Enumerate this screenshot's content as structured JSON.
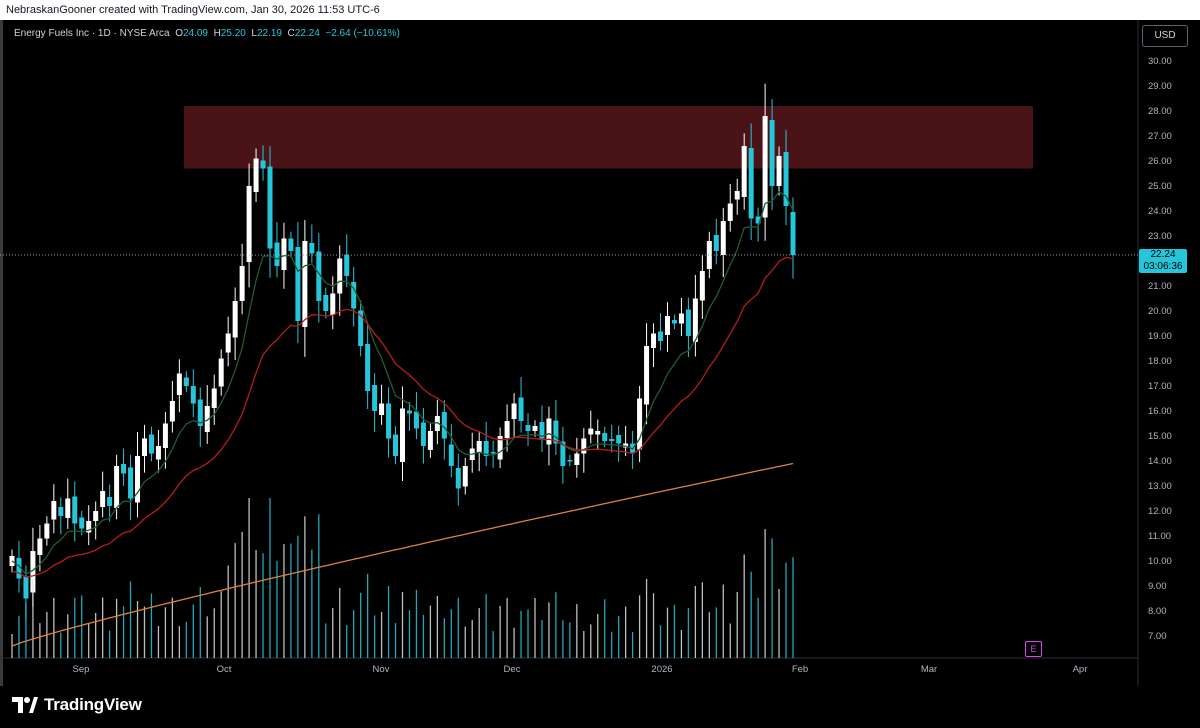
{
  "header": {
    "text": "NebraskanGooner created with TradingView.com, Jan 30, 2026 11:53 UTC-6"
  },
  "legend": {
    "symbol": "Energy Fuels Inc · 1D · NYSE Arca",
    "o_label": "O",
    "o": "24.09",
    "h_label": "H",
    "h": "25.20",
    "l_label": "L",
    "l": "22.19",
    "c_label": "C",
    "c": "22.24",
    "change": "−2.64 (−10.61%)"
  },
  "currency": "USD",
  "last_price": {
    "price": "22.24",
    "countdown": "03:06:36"
  },
  "earnings_badge": "E",
  "brand": "TradingView",
  "colors": {
    "up": "#ffffff",
    "down": "#26c6da",
    "zone": "#4a1318",
    "ema_short": "#1e5c32",
    "ema_mid": "#b71c1c",
    "ema_long": "#e0823d"
  },
  "chart_data": {
    "type": "candlestick",
    "title": "Energy Fuels Inc · 1D · NYSE Arca",
    "y_axis": {
      "ticks": [
        "30.00",
        "29.00",
        "28.00",
        "27.00",
        "26.00",
        "25.00",
        "24.00",
        "23.00",
        "22.00",
        "21.00",
        "20.00",
        "19.00",
        "18.00",
        "17.00",
        "16.00",
        "15.00",
        "14.00",
        "13.00",
        "12.00",
        "11.00",
        "10.00",
        "9.00",
        "8.00",
        "7.00"
      ],
      "ylim": [
        6.6,
        30.9
      ]
    },
    "x_axis": {
      "labels": [
        "Sep",
        "Oct",
        "Nov",
        "Dec",
        "2026",
        "Feb",
        "Mar",
        "Apr"
      ]
    },
    "resistance_zone": [
      25.7,
      28.2
    ],
    "candles_close": [
      10.2,
      9.3,
      8.5,
      10.4,
      10.9,
      11.5,
      12.4,
      11.8,
      12.5,
      11.5,
      11.3,
      11.6,
      12.0,
      12.8,
      12.2,
      13.8,
      13.5,
      12.5,
      14.2,
      14.9,
      14.3,
      14.6,
      15.5,
      16.4,
      17.5,
      17.0,
      16.3,
      15.4,
      16.2,
      16.9,
      18.1,
      19.1,
      20.4,
      21.8,
      25.0,
      26.1,
      25.7,
      22.5,
      21.8,
      22.9,
      22.4,
      19.6,
      22.8,
      22.3,
      20.4,
      20.0,
      20.7,
      22.1,
      21.4,
      20.1,
      18.6,
      16.8,
      16.0,
      16.3,
      14.9,
      14.2,
      16.1,
      15.9,
      15.3,
      14.6,
      15.2,
      15.8,
      14.9,
      13.8,
      12.9,
      13.8,
      14.5,
      14.8,
      14.2,
      14.3,
      15.0,
      15.6,
      16.3,
      15.6,
      15.2,
      15.4,
      14.9,
      15.7,
      14.7,
      13.8,
      14.0,
      14.3,
      14.9,
      15.3,
      15.2,
      14.8,
      14.8,
      14.7,
      14.7,
      14.3,
      16.5,
      18.6,
      19.1,
      18.8,
      19.8,
      19.5,
      19.9,
      19.0,
      20.5,
      21.6,
      22.8,
      22.4,
      23.6,
      24.3,
      24.8,
      26.6,
      23.7,
      23.5,
      27.8,
      25.0,
      26.2,
      24.2,
      22.24
    ],
    "volume": "relative bars, highest near mid-October",
    "moving_averages": [
      "short EMA (green)",
      "mid EMA (red)",
      "long MA (orange)"
    ]
  }
}
